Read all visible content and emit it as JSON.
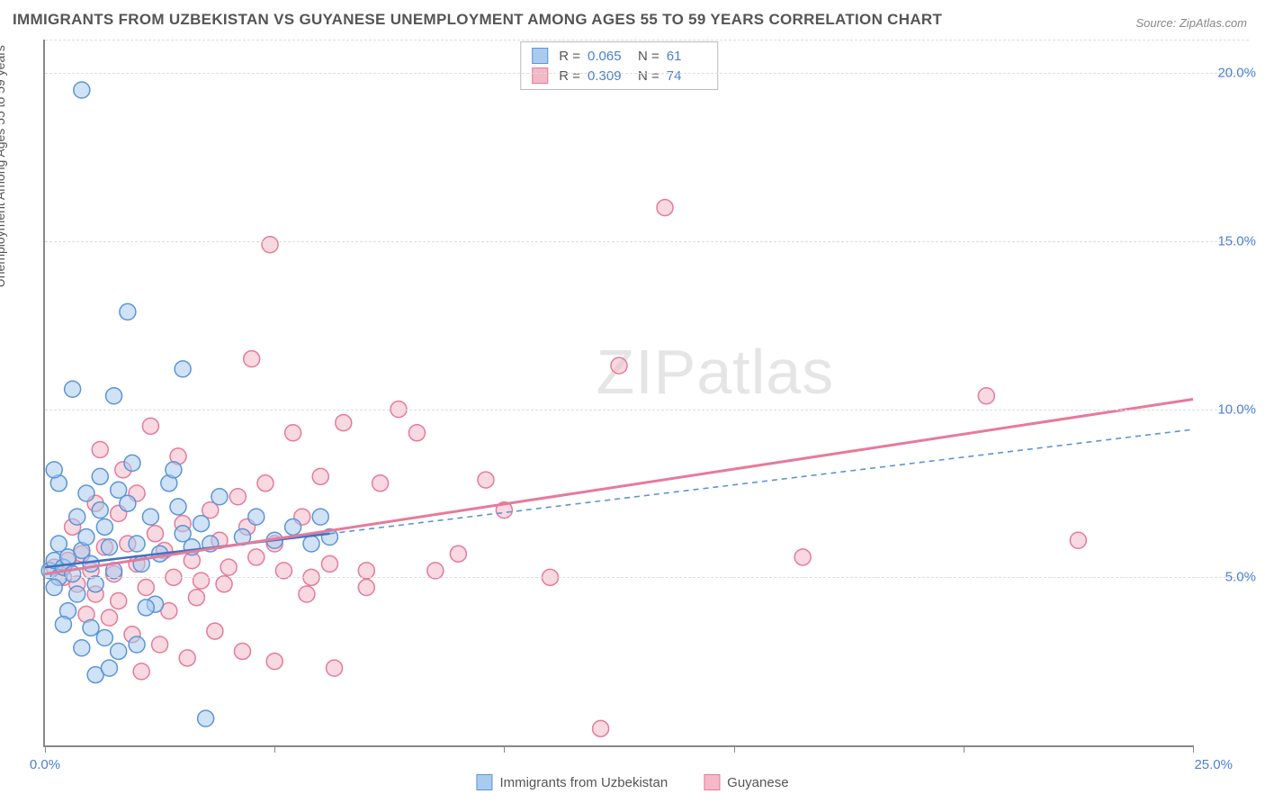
{
  "title": "IMMIGRANTS FROM UZBEKISTAN VS GUYANESE UNEMPLOYMENT AMONG AGES 55 TO 59 YEARS CORRELATION CHART",
  "source": "Source: ZipAtlas.com",
  "y_axis_label": "Unemployment Among Ages 55 to 59 years",
  "watermark_a": "ZIP",
  "watermark_b": "atlas",
  "chart": {
    "type": "scatter",
    "xlim": [
      0,
      25
    ],
    "ylim": [
      0,
      21
    ],
    "y_ticks": [
      5,
      10,
      15,
      20
    ],
    "y_tick_labels": [
      "5.0%",
      "10.0%",
      "15.0%",
      "20.0%"
    ],
    "x_ticks": [
      0,
      5,
      10,
      15,
      20,
      25
    ],
    "x_min_label": "0.0%",
    "x_max_label": "25.0%",
    "background_color": "#ffffff",
    "grid_color": "#dddddd",
    "point_radius": 9,
    "point_opacity": 0.55
  },
  "series": [
    {
      "name": "Immigrants from Uzbekistan",
      "color_fill": "#a9cbef",
      "color_stroke": "#5b95d6",
      "R": "0.065",
      "N": "61",
      "trend": {
        "x1": 0,
        "y1": 5.3,
        "x2": 6.2,
        "y2": 6.3,
        "extend_x2": 25,
        "extend_y2": 9.4,
        "width": 2.5,
        "dash_ext": "6,5"
      },
      "points": [
        [
          0.1,
          5.2
        ],
        [
          0.2,
          5.5
        ],
        [
          0.3,
          5.0
        ],
        [
          0.2,
          4.7
        ],
        [
          0.4,
          5.3
        ],
        [
          0.5,
          5.6
        ],
        [
          0.3,
          6.0
        ],
        [
          0.6,
          5.1
        ],
        [
          0.7,
          4.5
        ],
        [
          0.5,
          4.0
        ],
        [
          0.8,
          5.8
        ],
        [
          0.9,
          6.2
        ],
        [
          0.7,
          6.8
        ],
        [
          1.0,
          5.4
        ],
        [
          1.1,
          4.8
        ],
        [
          0.9,
          7.5
        ],
        [
          1.2,
          7.0
        ],
        [
          1.3,
          6.5
        ],
        [
          1.4,
          5.9
        ],
        [
          1.5,
          5.2
        ],
        [
          1.2,
          8.0
        ],
        [
          1.6,
          7.6
        ],
        [
          1.8,
          7.2
        ],
        [
          2.0,
          6.0
        ],
        [
          2.1,
          5.4
        ],
        [
          1.9,
          8.4
        ],
        [
          2.3,
          6.8
        ],
        [
          2.5,
          5.7
        ],
        [
          2.7,
          7.8
        ],
        [
          2.4,
          4.2
        ],
        [
          2.8,
          8.2
        ],
        [
          3.0,
          6.3
        ],
        [
          3.2,
          5.9
        ],
        [
          2.9,
          7.1
        ],
        [
          3.4,
          6.6
        ],
        [
          3.6,
          6.0
        ],
        [
          3.8,
          7.4
        ],
        [
          1.0,
          3.5
        ],
        [
          1.3,
          3.2
        ],
        [
          1.6,
          2.8
        ],
        [
          0.8,
          2.9
        ],
        [
          0.4,
          3.6
        ],
        [
          1.1,
          2.1
        ],
        [
          1.4,
          2.3
        ],
        [
          2.0,
          3.0
        ],
        [
          3.0,
          11.2
        ],
        [
          1.5,
          10.4
        ],
        [
          0.6,
          10.6
        ],
        [
          1.8,
          12.9
        ],
        [
          0.8,
          19.5
        ],
        [
          3.5,
          0.8
        ],
        [
          4.3,
          6.2
        ],
        [
          4.6,
          6.8
        ],
        [
          5.0,
          6.1
        ],
        [
          5.4,
          6.5
        ],
        [
          5.8,
          6.0
        ],
        [
          6.0,
          6.8
        ],
        [
          6.2,
          6.2
        ],
        [
          2.2,
          4.1
        ],
        [
          0.3,
          7.8
        ],
        [
          0.2,
          8.2
        ]
      ]
    },
    {
      "name": "Guyanese",
      "color_fill": "#f4b9c8",
      "color_stroke": "#e67a9a",
      "R": "0.309",
      "N": "74",
      "trend": {
        "x1": 0,
        "y1": 5.1,
        "x2": 25,
        "y2": 10.3,
        "width": 3
      },
      "points": [
        [
          0.2,
          5.3
        ],
        [
          0.4,
          5.0
        ],
        [
          0.5,
          5.5
        ],
        [
          0.7,
          4.8
        ],
        [
          0.8,
          5.7
        ],
        [
          1.0,
          5.2
        ],
        [
          1.1,
          4.5
        ],
        [
          1.3,
          5.9
        ],
        [
          1.5,
          5.1
        ],
        [
          1.6,
          4.3
        ],
        [
          1.8,
          6.0
        ],
        [
          2.0,
          5.4
        ],
        [
          2.2,
          4.7
        ],
        [
          2.4,
          6.3
        ],
        [
          2.6,
          5.8
        ],
        [
          2.8,
          5.0
        ],
        [
          3.0,
          6.6
        ],
        [
          3.2,
          5.5
        ],
        [
          3.4,
          4.9
        ],
        [
          3.6,
          7.0
        ],
        [
          3.8,
          6.1
        ],
        [
          4.0,
          5.3
        ],
        [
          4.2,
          7.4
        ],
        [
          4.4,
          6.5
        ],
        [
          4.6,
          5.6
        ],
        [
          4.8,
          7.8
        ],
        [
          5.0,
          6.0
        ],
        [
          5.2,
          5.2
        ],
        [
          5.4,
          9.3
        ],
        [
          5.6,
          6.8
        ],
        [
          5.8,
          5.0
        ],
        [
          6.0,
          8.0
        ],
        [
          6.2,
          5.4
        ],
        [
          6.5,
          9.6
        ],
        [
          7.0,
          5.2
        ],
        [
          7.3,
          7.8
        ],
        [
          7.7,
          10.0
        ],
        [
          8.1,
          9.3
        ],
        [
          9.6,
          7.9
        ],
        [
          10.0,
          7.0
        ],
        [
          11.0,
          5.0
        ],
        [
          1.2,
          8.8
        ],
        [
          1.7,
          8.2
        ],
        [
          2.3,
          9.5
        ],
        [
          2.9,
          8.6
        ],
        [
          4.9,
          14.9
        ],
        [
          12.5,
          11.3
        ],
        [
          13.5,
          16.0
        ],
        [
          16.5,
          5.6
        ],
        [
          20.5,
          10.4
        ],
        [
          22.5,
          6.1
        ],
        [
          12.1,
          0.5
        ],
        [
          1.4,
          3.8
        ],
        [
          1.9,
          3.3
        ],
        [
          2.5,
          3.0
        ],
        [
          3.1,
          2.6
        ],
        [
          3.7,
          3.4
        ],
        [
          4.3,
          2.8
        ],
        [
          2.1,
          2.2
        ],
        [
          5.0,
          2.5
        ],
        [
          5.7,
          4.5
        ],
        [
          6.3,
          2.3
        ],
        [
          0.6,
          6.5
        ],
        [
          0.9,
          3.9
        ],
        [
          1.1,
          7.2
        ],
        [
          1.6,
          6.9
        ],
        [
          2.0,
          7.5
        ],
        [
          2.7,
          4.0
        ],
        [
          3.3,
          4.4
        ],
        [
          3.9,
          4.8
        ],
        [
          7.0,
          4.7
        ],
        [
          8.5,
          5.2
        ],
        [
          9.0,
          5.7
        ],
        [
          4.5,
          11.5
        ]
      ]
    }
  ],
  "stats_labels": {
    "R": "R =",
    "N": "N ="
  },
  "x_legend_series1": "Immigrants from Uzbekistan",
  "x_legend_series2": "Guyanese"
}
